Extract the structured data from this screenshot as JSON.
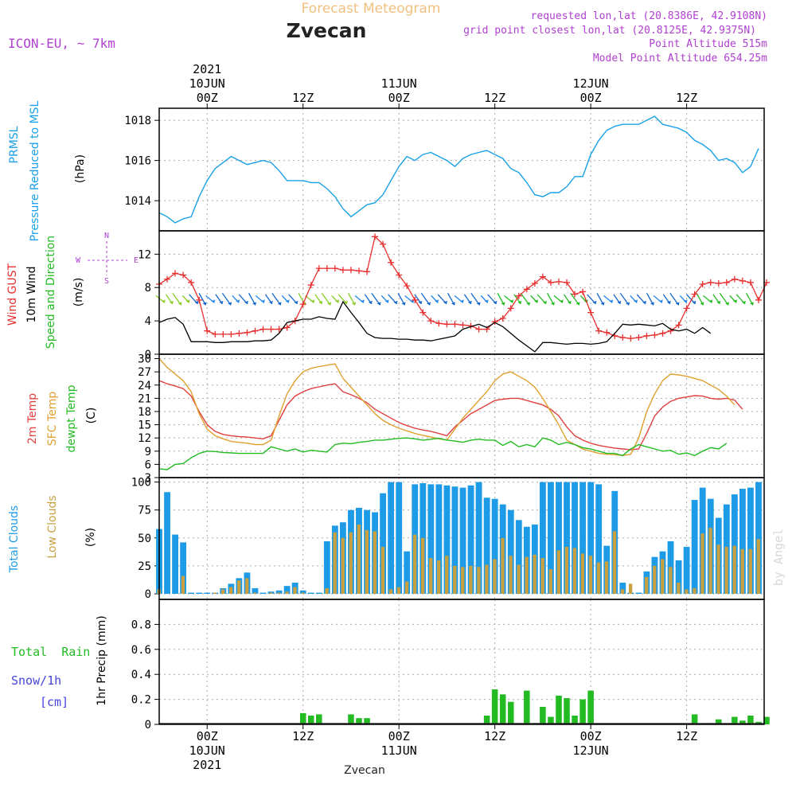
{
  "header": {
    "subtitle": "Forecast Meteogram",
    "location": "Zvecan",
    "model": "ICON-EU, ~ 7km",
    "requested": "requested lon,lat (20.8386E, 42.9108N)",
    "closest": "grid point closest lon,lat (20.8125E, 42.9375N)",
    "altitude": "Point Altitude 515m",
    "model_altitude": "Model Point Altitude 654.25m",
    "footer_location": "Zvecan",
    "watermark": "by Angel"
  },
  "colors": {
    "pressure": "#1aa0e6",
    "gust": "#e83030",
    "wind": "#000000",
    "dir_green": "#22bb22",
    "temp2m": "#e04040",
    "sfc": "#e0a030",
    "dewpt": "#22bb22",
    "total_clouds": "#1e9be6",
    "low_clouds": "#c8a040",
    "rain": "#22bb22",
    "snow": "#4444dd",
    "header_purple": "#b040d0",
    "header_orange": "#f0c080"
  },
  "time_axis": {
    "top_ticks": [
      {
        "t": 6,
        "label": "00Z"
      },
      {
        "t": 18,
        "label": "12Z"
      },
      {
        "t": 30,
        "label": "00Z"
      },
      {
        "t": 42,
        "label": "12Z"
      },
      {
        "t": 54,
        "label": "00Z"
      },
      {
        "t": 66,
        "label": "12Z"
      }
    ],
    "top_dates": [
      {
        "t": 6,
        "label": "10JUN"
      },
      {
        "t": 30,
        "label": "11JUN"
      },
      {
        "t": 54,
        "label": "12JUN"
      }
    ],
    "year": "2021",
    "year_t": 6
  },
  "chart_data": [
    {
      "type": "line",
      "name": "pressure-panel",
      "ylabel": [
        "PRMSL",
        "Pressure Reduced to MSL"
      ],
      "units": "(hPa)",
      "ylim": [
        1012.5,
        1018.6
      ],
      "yticks": [
        1014,
        1016,
        1018
      ],
      "x": [
        0,
        1,
        2,
        3,
        4,
        5,
        6,
        7,
        8,
        9,
        10,
        11,
        12,
        13,
        14,
        15,
        16,
        17,
        18,
        19,
        20,
        21,
        22,
        23,
        24,
        25,
        26,
        27,
        28,
        29,
        30,
        31,
        32,
        33,
        34,
        35,
        36,
        37,
        38,
        39,
        40,
        41,
        42,
        43,
        44,
        45,
        46,
        47,
        48,
        49,
        50,
        51,
        52,
        53,
        54,
        55,
        56,
        57,
        58,
        59,
        60,
        61,
        62,
        63,
        64,
        65,
        66,
        67,
        68,
        69,
        70,
        71,
        72,
        73,
        74,
        75
      ],
      "series": [
        {
          "name": "PRMSL",
          "values": [
            1013.4,
            1013.2,
            1012.9,
            1013.1,
            1013.2,
            1014.2,
            1015.0,
            1015.6,
            1015.9,
            1016.2,
            1016.0,
            1015.8,
            1015.9,
            1016.0,
            1015.9,
            1015.5,
            1015.0,
            1015.0,
            1015.0,
            1014.9,
            1014.9,
            1014.6,
            1014.2,
            1013.6,
            1013.2,
            1013.5,
            1013.8,
            1013.9,
            1014.3,
            1015.0,
            1015.7,
            1016.2,
            1016.0,
            1016.3,
            1016.4,
            1016.2,
            1016.0,
            1015.7,
            1016.1,
            1016.3,
            1016.4,
            1016.5,
            1016.3,
            1016.1,
            1015.6,
            1015.4,
            1014.9,
            1014.3,
            1014.2,
            1014.4,
            1014.4,
            1014.7,
            1015.2,
            1015.2,
            1016.3,
            1017.0,
            1017.5,
            1017.7,
            1017.8,
            1017.8,
            1017.8,
            1018.0,
            1018.2,
            1017.8,
            1017.7,
            1017.6,
            1017.4,
            1017.0,
            1016.8,
            1016.5,
            1016.0,
            1016.1,
            1015.9,
            1015.4,
            1015.7,
            1016.6
          ]
        }
      ]
    },
    {
      "type": "line",
      "name": "wind-panel",
      "ylabel": [
        "Wind GUST",
        "10m Wind",
        "Speed and Direction"
      ],
      "units": "(m/s)",
      "compass": {
        "n": "N",
        "e": "E",
        "s": "S",
        "w": "W"
      },
      "ylim": [
        0,
        14.8
      ],
      "yticks": [
        0,
        4,
        8,
        12
      ],
      "series": [
        {
          "name": "Wind GUST",
          "values": [
            8.4,
            9.0,
            9.7,
            9.5,
            8.6,
            6.5,
            2.8,
            2.4,
            2.4,
            2.4,
            2.5,
            2.6,
            2.8,
            3.0,
            3.0,
            3.0,
            3.2,
            4.0,
            6.0,
            8.3,
            10.3,
            10.3,
            10.3,
            10.1,
            10.1,
            10.0,
            9.9,
            14.1,
            13.2,
            11.0,
            9.5,
            8.2,
            6.5,
            5.0,
            4.0,
            3.7,
            3.6,
            3.6,
            3.5,
            3.4,
            3.0,
            3.0,
            3.9,
            4.3,
            5.5,
            7.0,
            7.8,
            8.5,
            9.3,
            8.6,
            8.7,
            8.6,
            7.2,
            7.5,
            5.0,
            2.8,
            2.6,
            2.2,
            2.0,
            1.9,
            2.0,
            2.2,
            2.3,
            2.5,
            2.8,
            3.5,
            5.5,
            7.2,
            8.4,
            8.6,
            8.5,
            8.6,
            9.0,
            8.8,
            8.6,
            6.5,
            8.6
          ]
        },
        {
          "name": "10m Wind",
          "values": [
            3.8,
            4.2,
            4.4,
            3.6,
            1.5,
            1.5,
            1.5,
            1.4,
            1.4,
            1.5,
            1.5,
            1.5,
            1.6,
            1.6,
            1.7,
            2.5,
            3.8,
            4.0,
            4.2,
            4.2,
            4.5,
            4.3,
            4.2,
            6.3,
            5.0,
            3.8,
            2.5,
            2.0,
            1.9,
            1.9,
            1.8,
            1.8,
            1.7,
            1.7,
            1.6,
            1.8,
            2.0,
            2.2,
            3.0,
            3.3,
            3.6,
            3.2,
            3.8,
            3.3,
            2.5,
            1.7,
            1.0,
            0.3,
            1.4,
            1.4,
            1.3,
            1.2,
            1.3,
            1.3,
            1.2,
            1.3,
            1.5,
            2.5,
            3.6,
            3.5,
            3.6,
            3.5,
            3.4,
            3.7,
            3.0,
            2.8,
            3.0,
            2.5,
            3.2,
            2.5
          ]
        },
        {
          "name": "Direction arrows",
          "count": 72
        }
      ]
    },
    {
      "type": "line",
      "name": "temperature-panel",
      "ylabel": [
        "2m Temp",
        "SFC Temp",
        "dewpt Temp"
      ],
      "units": "(C)",
      "ylim": [
        3,
        31
      ],
      "yticks": [
        3,
        6,
        9,
        12,
        15,
        18,
        21,
        24,
        27,
        30
      ],
      "series": [
        {
          "name": "2m Temp",
          "values": [
            25.0,
            24.3,
            23.8,
            23.2,
            21.5,
            18.0,
            15.0,
            13.5,
            12.8,
            12.5,
            12.3,
            12.2,
            12.0,
            11.8,
            12.5,
            16.0,
            19.5,
            21.5,
            22.5,
            23.2,
            23.6,
            24.0,
            24.3,
            22.5,
            21.8,
            21.0,
            20.0,
            18.5,
            17.5,
            16.5,
            15.5,
            14.8,
            14.2,
            13.8,
            13.5,
            13.0,
            12.5,
            14.5,
            16.0,
            17.5,
            18.5,
            19.5,
            20.5,
            20.8,
            21.0,
            21.0,
            20.5,
            20.0,
            19.5,
            18.5,
            17.0,
            14.5,
            12.5,
            11.5,
            10.8,
            10.3,
            10.0,
            9.7,
            9.5,
            9.3,
            9.5,
            13.0,
            17.0,
            19.0,
            20.3,
            21.0,
            21.3,
            21.6,
            21.5,
            21.0,
            20.8,
            21.0,
            20.6,
            18.5
          ]
        },
        {
          "name": "SFC Temp",
          "values": [
            30.0,
            28.0,
            26.5,
            25.0,
            22.5,
            17.5,
            14.0,
            12.5,
            11.8,
            11.2,
            11.0,
            10.8,
            10.5,
            10.5,
            11.5,
            17.0,
            22.0,
            25.0,
            27.0,
            27.8,
            28.2,
            28.5,
            28.8,
            25.5,
            23.5,
            21.5,
            19.5,
            17.5,
            16.0,
            15.0,
            14.2,
            13.6,
            13.0,
            12.6,
            12.2,
            11.8,
            11.5,
            14.0,
            16.5,
            18.5,
            20.5,
            22.5,
            25.0,
            26.5,
            27.0,
            26.0,
            25.0,
            23.5,
            21.0,
            18.0,
            15.0,
            11.5,
            10.5,
            9.5,
            9.0,
            8.5,
            8.3,
            8.2,
            8.0,
            8.3,
            12.0,
            18.0,
            22.0,
            25.0,
            26.5,
            26.3,
            26.0,
            25.5,
            25.0,
            24.0,
            23.0,
            21.5,
            19.5
          ]
        },
        {
          "name": "dewpt Temp",
          "values": [
            5.0,
            4.8,
            6.0,
            6.2,
            7.5,
            8.5,
            9.0,
            8.9,
            8.7,
            8.6,
            8.5,
            8.5,
            8.5,
            8.5,
            10.0,
            9.5,
            9.0,
            9.5,
            8.8,
            9.2,
            9.0,
            8.8,
            10.5,
            10.8,
            10.7,
            11.0,
            11.2,
            11.5,
            11.5,
            11.7,
            11.9,
            12.0,
            11.8,
            11.5,
            11.7,
            11.9,
            11.5,
            11.3,
            11.0,
            11.5,
            11.7,
            11.5,
            11.5,
            10.3,
            11.2,
            10.0,
            10.5,
            10.0,
            12.0,
            11.5,
            10.5,
            11.0,
            10.5,
            9.8,
            9.5,
            9.0,
            8.5,
            8.5,
            8.0,
            9.5,
            10.5,
            10.0,
            9.5,
            9.0,
            9.2,
            8.3,
            8.6,
            8.0,
            9.0,
            9.8,
            9.5,
            10.8
          ]
        }
      ]
    },
    {
      "type": "bar",
      "name": "clouds-panel",
      "ylabel": [
        "Total Clouds",
        "Low Clouds"
      ],
      "units": "(%)",
      "ylim": [
        -5,
        104
      ],
      "yticks": [
        0,
        25,
        50,
        75,
        100
      ],
      "series": [
        {
          "name": "Total Clouds",
          "values": [
            58,
            91,
            53,
            46,
            1,
            1,
            1,
            1,
            5,
            9,
            14,
            19,
            5,
            1,
            2,
            3,
            7,
            10,
            3,
            1,
            1,
            47,
            61,
            64,
            75,
            77,
            75,
            73,
            90,
            100,
            100,
            38,
            98,
            99,
            98,
            98,
            97,
            96,
            95,
            97,
            100,
            86,
            85,
            80,
            75,
            66,
            60,
            62,
            100,
            100,
            100,
            100,
            100,
            100,
            100,
            98,
            43,
            92,
            10,
            1,
            1,
            20,
            33,
            38,
            47,
            30,
            42,
            84,
            95,
            85,
            68,
            80,
            89,
            94,
            95,
            100
          ]
        },
        {
          "name": "Low Clouds",
          "values": [
            4,
            0,
            0,
            16,
            0,
            0,
            0,
            1,
            4,
            6,
            12,
            14,
            1,
            0,
            1,
            1,
            2,
            6,
            1,
            0,
            0,
            5,
            55,
            50,
            55,
            62,
            57,
            56,
            42,
            4,
            6,
            11,
            53,
            50,
            32,
            30,
            34,
            25,
            24,
            25,
            24,
            26,
            31,
            50,
            34,
            26,
            33,
            35,
            32,
            22,
            39,
            42,
            41,
            36,
            34,
            28,
            29,
            56,
            4,
            9,
            0,
            15,
            25,
            31,
            24,
            10,
            4,
            5,
            54,
            59,
            44,
            42,
            43,
            40,
            40,
            49,
            34,
            51,
            41
          ]
        }
      ]
    },
    {
      "type": "bar",
      "name": "precip-panel",
      "ylabel": [
        "1hr Precip (mm)"
      ],
      "legend": {
        "rain": "Total  Rain",
        "snow": "Snow/1h",
        "snow_units": "[cm]"
      },
      "ylim": [
        0,
        1
      ],
      "yticks": [
        0,
        0.2,
        0.4,
        0.6,
        0.8
      ],
      "yticklabels": [
        "0",
        "0.2",
        "0.4",
        "0.6",
        "0.8"
      ],
      "series": [
        {
          "name": "Total Rain",
          "values": [
            0,
            0,
            0,
            0,
            0,
            0,
            0,
            0,
            0,
            0,
            0,
            0,
            0,
            0,
            0,
            0,
            0,
            0,
            0.09,
            0.07,
            0.08,
            0.01,
            0.01,
            0.01,
            0.08,
            0.05,
            0.05,
            0,
            0,
            0,
            0,
            0,
            0,
            0,
            0,
            0,
            0,
            0,
            0,
            0,
            0,
            0.07,
            0.28,
            0.24,
            0.18,
            0.01,
            0.27,
            0.01,
            0.14,
            0.06,
            0.23,
            0.21,
            0.07,
            0.2,
            0.27,
            0,
            0,
            0,
            0,
            0,
            0,
            0,
            0,
            0,
            0,
            0,
            0,
            0.08,
            0,
            0.01,
            0.04,
            0,
            0.06,
            0.03,
            0.07,
            0.02,
            0.06
          ]
        },
        {
          "name": "Snow/1h",
          "values": [
            0,
            0,
            0,
            0,
            0,
            0,
            0,
            0,
            0,
            0,
            0,
            0,
            0,
            0,
            0,
            0,
            0,
            0,
            0,
            0,
            0,
            0,
            0,
            0,
            0,
            0,
            0,
            0,
            0,
            0,
            0,
            0,
            0,
            0,
            0,
            0,
            0,
            0,
            0,
            0,
            0,
            0,
            0,
            0,
            0,
            0,
            0,
            0,
            0,
            0,
            0,
            0,
            0,
            0,
            0,
            0,
            0,
            0,
            0,
            0,
            0,
            0,
            0,
            0,
            0,
            0,
            0,
            0,
            0,
            0,
            0,
            0,
            0,
            0,
            0,
            0
          ]
        }
      ]
    }
  ]
}
